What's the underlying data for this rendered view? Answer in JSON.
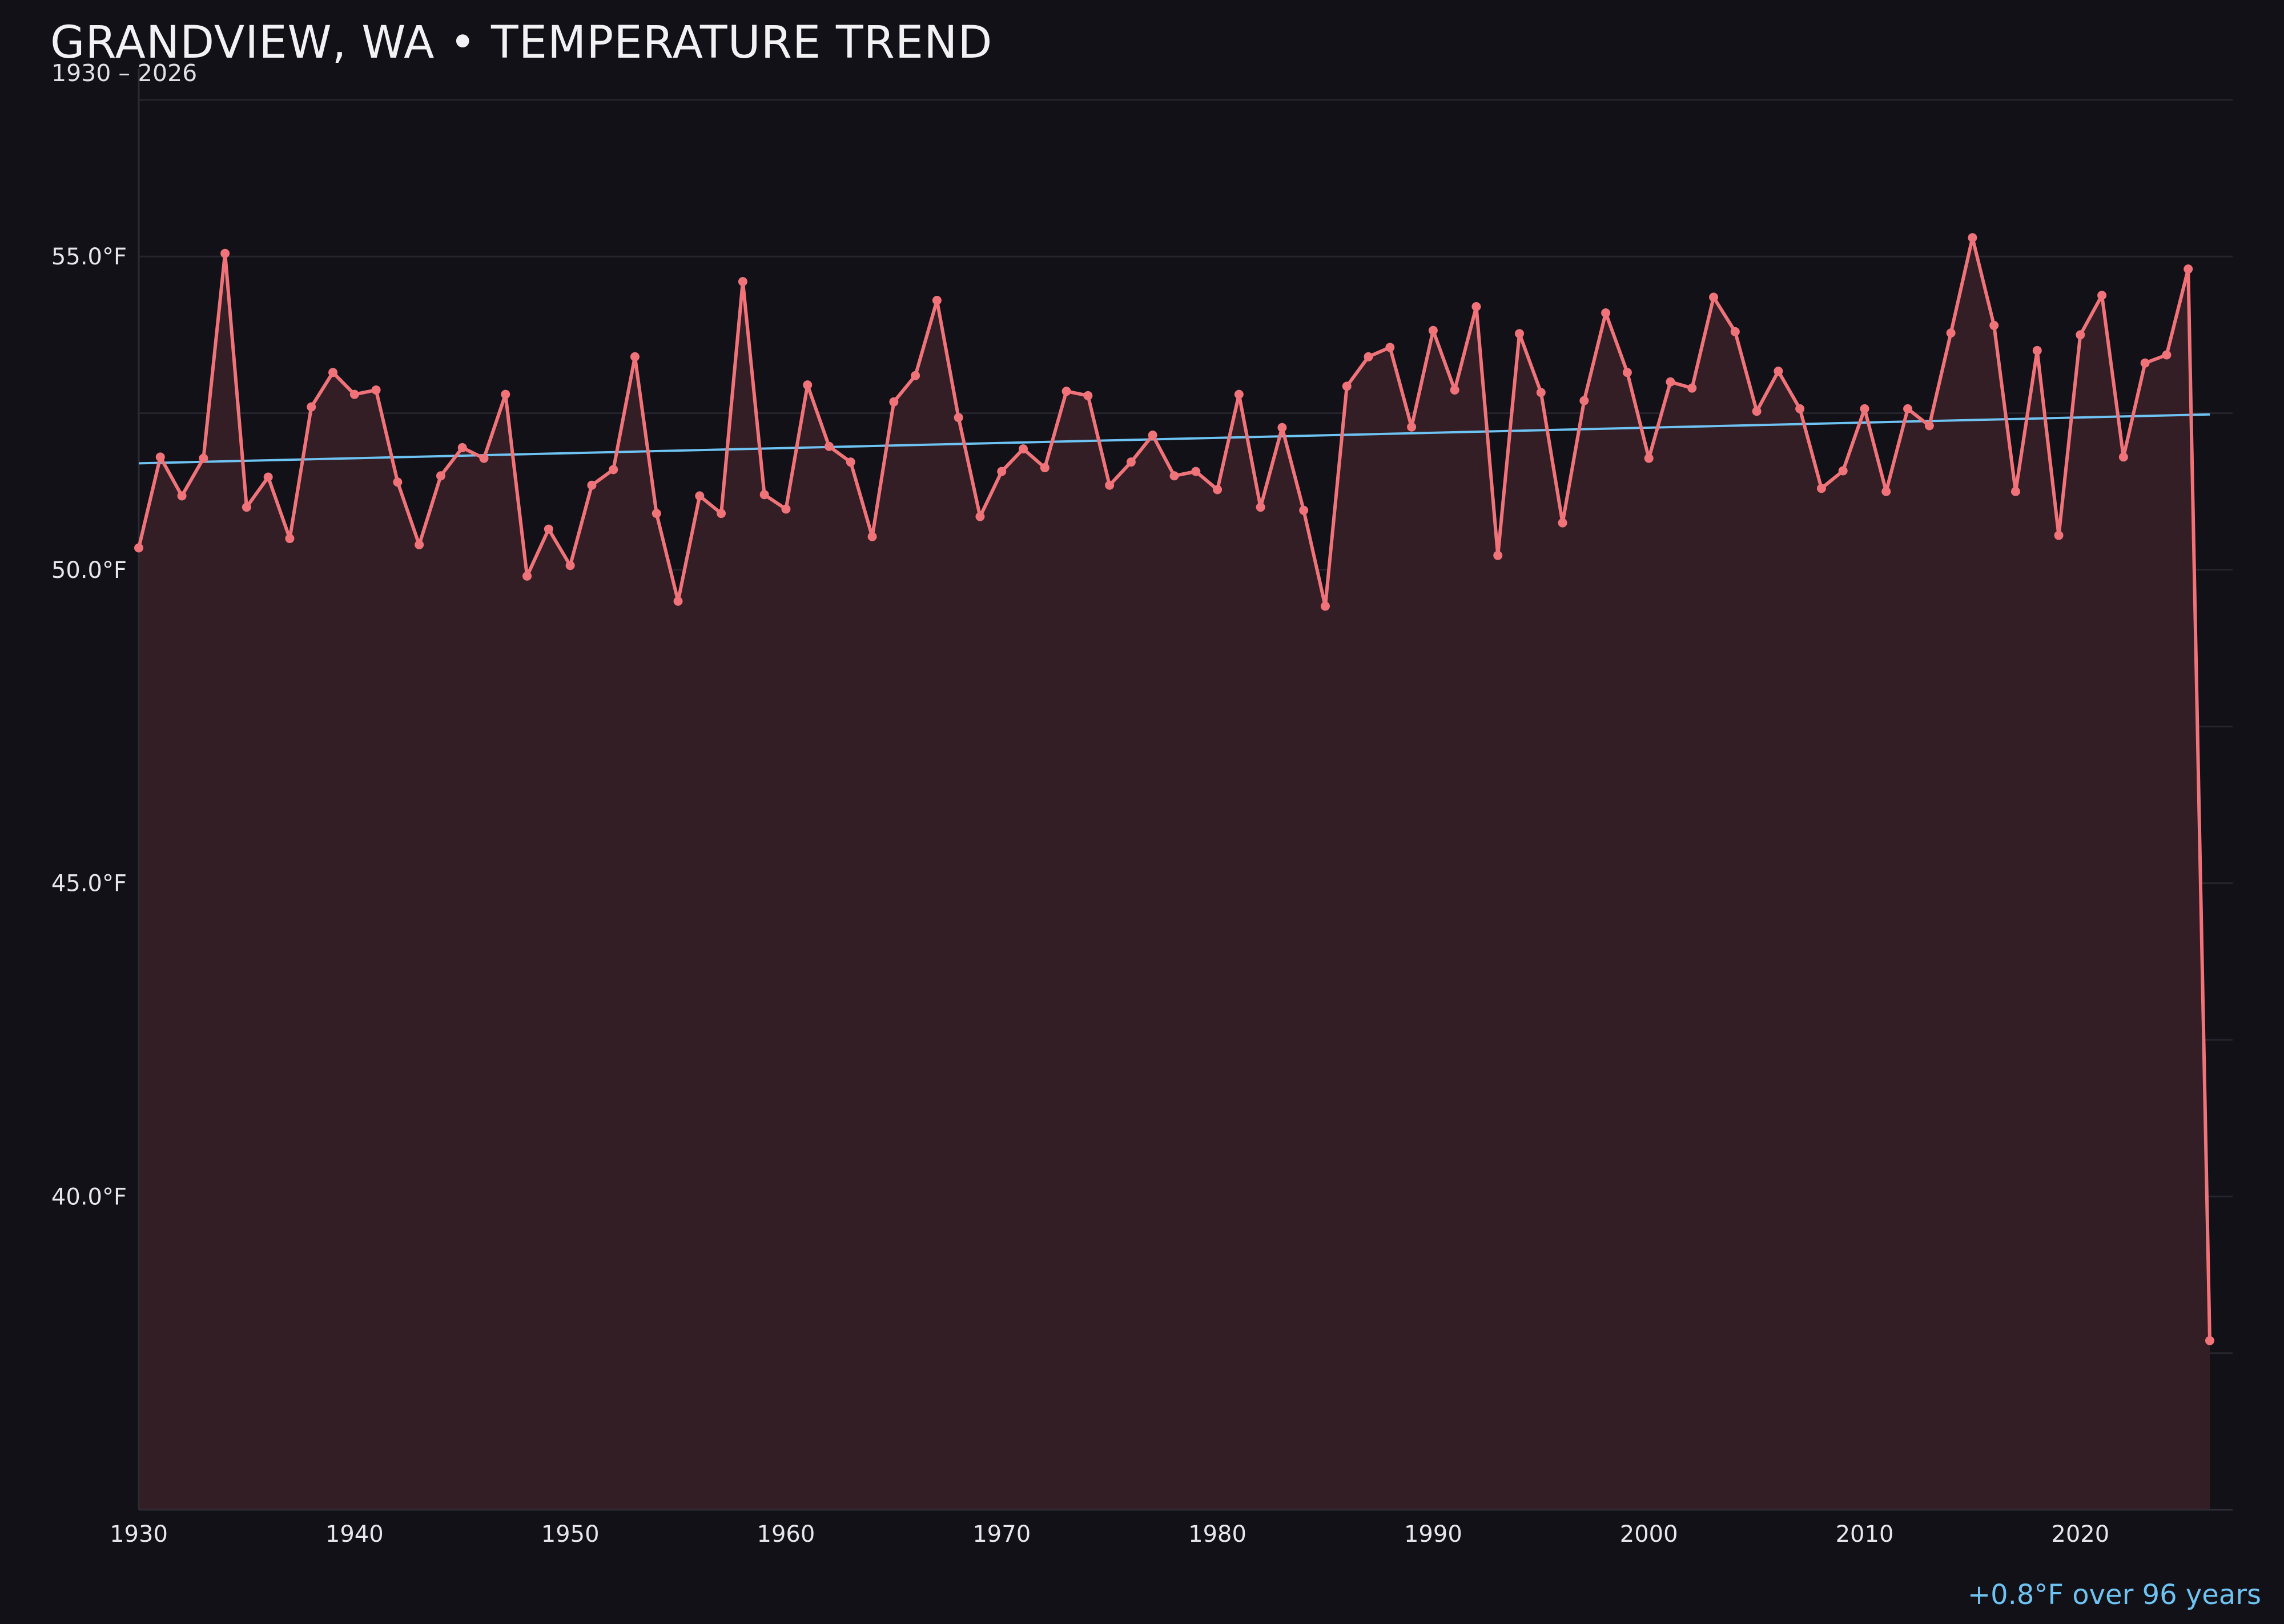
{
  "chart_data": {
    "type": "line",
    "title": "GRANDVIEW, WA • TEMPERATURE TREND",
    "subtitle": "1930 – 2026",
    "xlabel": "",
    "ylabel": "",
    "annotation": "+0.8°F over 96 years",
    "xlim": [
      1930,
      2026
    ],
    "ylim": [
      35.0,
      58.0
    ],
    "x_ticks": [
      1930,
      1940,
      1950,
      1960,
      1970,
      1980,
      1990,
      2000,
      2010,
      2020
    ],
    "y_ticks": [
      {
        "value": 40.0,
        "label": "40.0°F"
      },
      {
        "value": 45.0,
        "label": "45.0°F"
      },
      {
        "value": 50.0,
        "label": "50.0°F"
      },
      {
        "value": 55.0,
        "label": "55.0°F"
      }
    ],
    "grid": true,
    "series": [
      {
        "color": "#f0737a",
        "x": [
          1930,
          1931,
          1932,
          1933,
          1934,
          1935,
          1936,
          1937,
          1938,
          1939,
          1940,
          1941,
          1942,
          1943,
          1944,
          1945,
          1946,
          1947,
          1948,
          1949,
          1950,
          1951,
          1952,
          1953,
          1954,
          1955,
          1956,
          1957,
          1958,
          1959,
          1960,
          1961,
          1962,
          1963,
          1964,
          1965,
          1966,
          1967,
          1968,
          1969,
          1970,
          1971,
          1972,
          1973,
          1974,
          1975,
          1976,
          1977,
          1978,
          1979,
          1980,
          1981,
          1982,
          1983,
          1984,
          1985,
          1986,
          1987,
          1988,
          1989,
          1990,
          1991,
          1992,
          1993,
          1994,
          1995,
          1996,
          1997,
          1998,
          1999,
          2000,
          2001,
          2002,
          2003,
          2004,
          2005,
          2006,
          2007,
          2008,
          2009,
          2010,
          2011,
          2012,
          2013,
          2014,
          2015,
          2016,
          2017,
          2018,
          2019,
          2020,
          2021,
          2022,
          2023,
          2024,
          2025,
          2026
        ],
        "y": [
          50.35,
          51.8,
          51.18,
          51.78,
          55.05,
          51.0,
          51.48,
          50.5,
          52.6,
          53.15,
          52.8,
          52.87,
          51.4,
          50.4,
          51.5,
          51.95,
          51.78,
          52.8,
          49.9,
          50.65,
          50.07,
          51.35,
          51.6,
          53.4,
          50.9,
          49.5,
          51.18,
          50.9,
          54.6,
          51.2,
          50.97,
          52.95,
          51.97,
          51.72,
          50.53,
          52.68,
          53.1,
          54.3,
          52.43,
          50.85,
          51.57,
          51.93,
          51.63,
          52.85,
          52.78,
          51.35,
          51.72,
          52.15,
          51.5,
          51.57,
          51.28,
          52.8,
          51.0,
          52.27,
          50.95,
          49.42,
          52.93,
          53.4,
          53.55,
          52.28,
          53.82,
          52.87,
          54.2,
          50.23,
          53.77,
          52.83,
          50.75,
          52.7,
          54.1,
          53.15,
          51.78,
          53.0,
          52.9,
          54.35,
          53.8,
          52.53,
          53.17,
          52.57,
          51.3,
          51.58,
          52.57,
          51.25,
          52.57,
          52.3,
          53.78,
          55.3,
          53.9,
          51.25,
          53.5,
          50.55,
          53.75,
          54.38,
          51.8,
          53.3,
          53.43,
          54.8,
          37.7
        ]
      },
      {
        "color": "#6ec3f2",
        "type": "trend",
        "x": [
          1930,
          2026
        ],
        "y": [
          51.7,
          52.48
        ]
      }
    ]
  }
}
